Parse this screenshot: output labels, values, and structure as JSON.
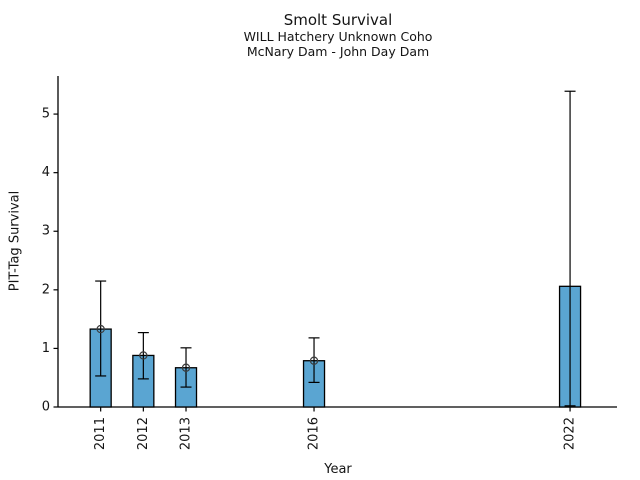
{
  "chart_data": {
    "type": "bar",
    "title": "Smolt Survival",
    "subtitle1": "WILL Hatchery Unknown Coho",
    "subtitle2": "McNary Dam - John Day Dam",
    "xlabel": "Year",
    "ylabel": "PIT-Tag Survival",
    "categories": [
      2011,
      2012,
      2013,
      2016,
      2022
    ],
    "values": [
      1.33,
      0.88,
      0.67,
      0.79,
      2.06
    ],
    "ci_upper": [
      2.15,
      1.27,
      1.01,
      1.18,
      5.39
    ],
    "ci_lower": [
      0.53,
      0.48,
      0.34,
      0.42,
      0.02
    ],
    "point_marker": [
      true,
      true,
      true,
      true,
      false
    ],
    "y_ticks": [
      0,
      1,
      2,
      3,
      4,
      5
    ],
    "xlim": [
      2010,
      2023.1
    ],
    "ylim": [
      0,
      5.65
    ],
    "x_axis_scale": "linear-year",
    "grid": false,
    "legend": false,
    "bar_color": "#5AA5D2",
    "bar_edge_color": "#000000",
    "error_bar_color": "#000000",
    "marker_style": "open-circle",
    "marker_color": "#3c3c3c",
    "axis_color": "#000000",
    "background": "#FFFFFF"
  }
}
